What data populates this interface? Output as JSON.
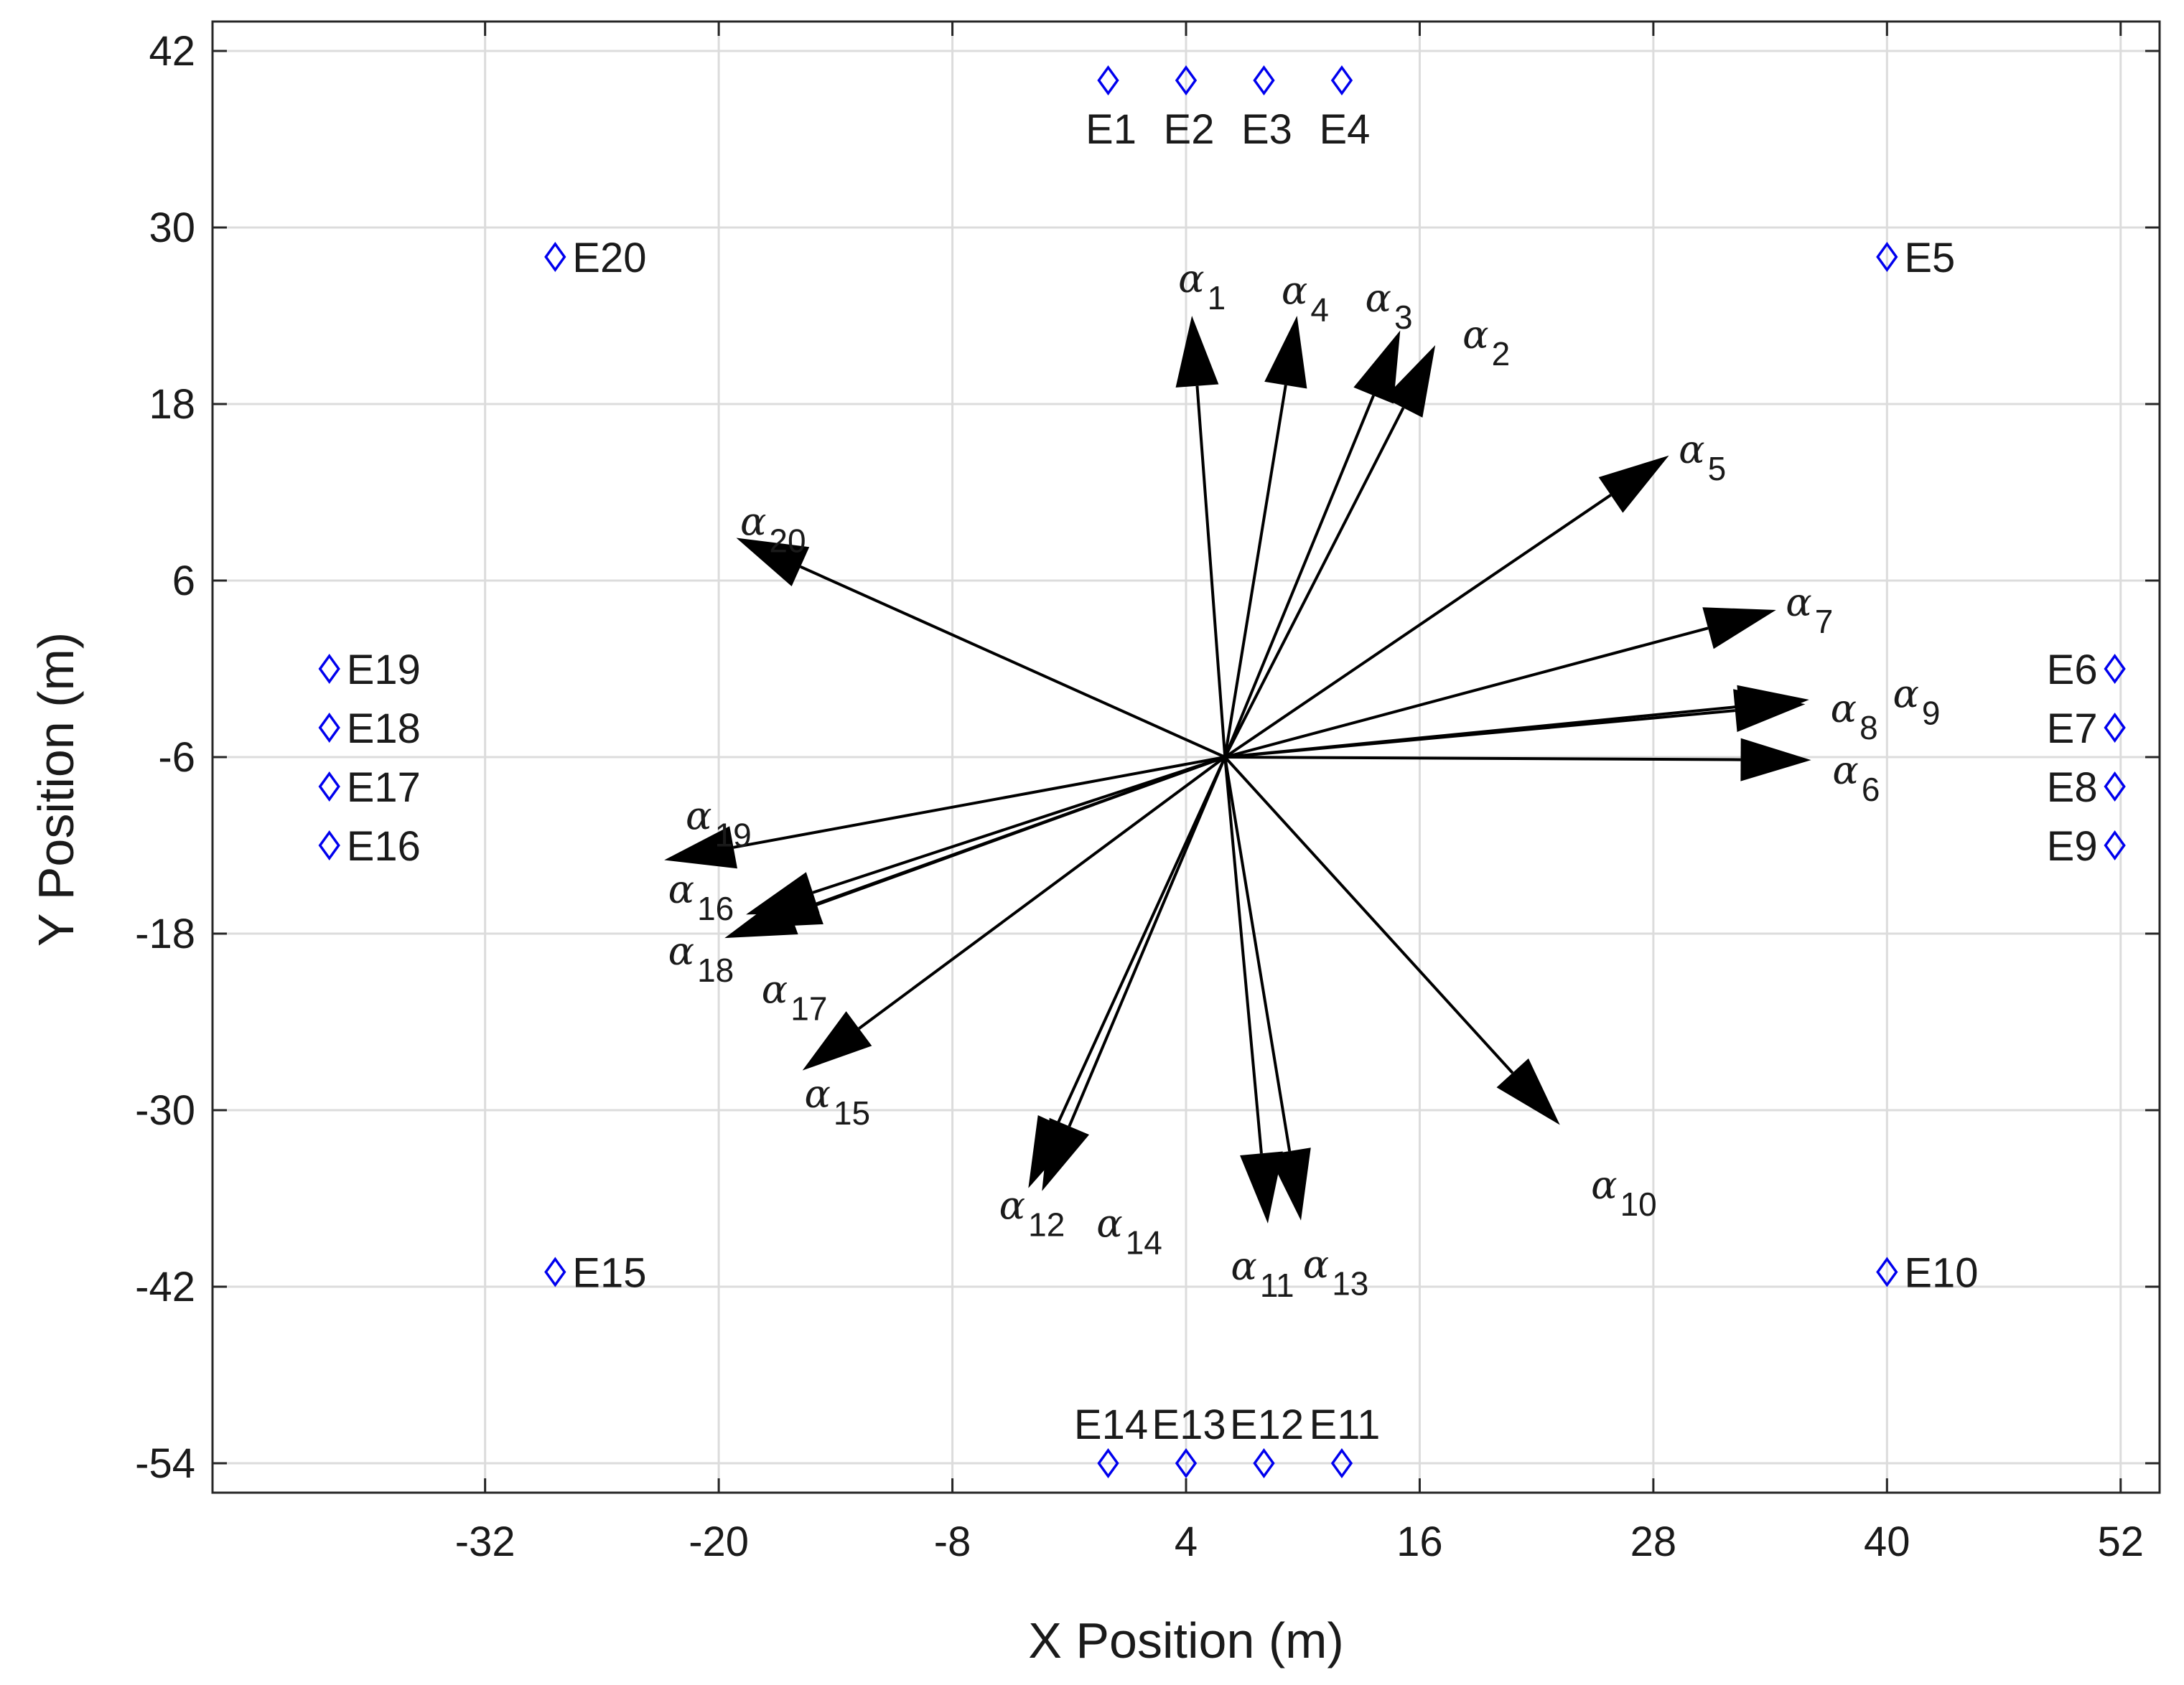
{
  "chart_data": {
    "type": "scatter",
    "title": "",
    "xlabel": "X Position (m)",
    "ylabel": "Y Position (m)",
    "xlim": [
      -46,
      54
    ],
    "ylim": [
      -56,
      44
    ],
    "xticks": [
      -32,
      -20,
      -8,
      4,
      16,
      28,
      40,
      52
    ],
    "yticks": [
      42,
      30,
      18,
      6,
      -6,
      -18,
      -30,
      -42,
      -54
    ],
    "grid": true,
    "colors": {
      "emitter": "#0000ee",
      "arrow": "#000000",
      "grid": "#dcdcdc",
      "axes": "#262626"
    },
    "emitter_marker": "diamond",
    "emitters": [
      {
        "name": "E1",
        "x": 0,
        "y": 40,
        "label_side": "below"
      },
      {
        "name": "E2",
        "x": 4,
        "y": 40,
        "label_side": "below"
      },
      {
        "name": "E3",
        "x": 8,
        "y": 40,
        "label_side": "below"
      },
      {
        "name": "E4",
        "x": 12,
        "y": 40,
        "label_side": "below"
      },
      {
        "name": "E5",
        "x": 40,
        "y": 28,
        "label_side": "right"
      },
      {
        "name": "E6",
        "x": 51.7,
        "y": 0,
        "label_side": "left"
      },
      {
        "name": "E7",
        "x": 51.7,
        "y": -4,
        "label_side": "left"
      },
      {
        "name": "E8",
        "x": 51.7,
        "y": -8,
        "label_side": "left"
      },
      {
        "name": "E9",
        "x": 51.7,
        "y": -12,
        "label_side": "left"
      },
      {
        "name": "E10",
        "x": 40,
        "y": -41,
        "label_side": "right"
      },
      {
        "name": "E11",
        "x": 12,
        "y": -54,
        "label_side": "above"
      },
      {
        "name": "E12",
        "x": 8,
        "y": -54,
        "label_side": "above"
      },
      {
        "name": "E13",
        "x": 4,
        "y": -54,
        "label_side": "above"
      },
      {
        "name": "E14",
        "x": 0,
        "y": -54,
        "label_side": "above"
      },
      {
        "name": "E15",
        "x": -28.4,
        "y": -41,
        "label_side": "right"
      },
      {
        "name": "E16",
        "x": -40,
        "y": -12,
        "label_side": "right"
      },
      {
        "name": "E17",
        "x": -40,
        "y": -8,
        "label_side": "right"
      },
      {
        "name": "E18",
        "x": -40,
        "y": -4,
        "label_side": "right"
      },
      {
        "name": "E19",
        "x": -40,
        "y": 0,
        "label_side": "right"
      },
      {
        "name": "E20",
        "x": -28.4,
        "y": 28,
        "label_side": "right"
      }
    ],
    "arrow_origin": {
      "x": 6,
      "y": -6
    },
    "arrows": [
      {
        "symbol": "α",
        "index": "1",
        "x": 4.3,
        "y": 24,
        "label_x": 3.6,
        "label_y": 25.6
      },
      {
        "symbol": "α",
        "index": "2",
        "x": 16.8,
        "y": 22,
        "label_x": 18.2,
        "label_y": 21.8
      },
      {
        "symbol": "α",
        "index": "3",
        "x": 15,
        "y": 23,
        "label_x": 13.2,
        "label_y": 24.3
      },
      {
        "symbol": "α",
        "index": "4",
        "x": 9.7,
        "y": 24,
        "label_x": 8.9,
        "label_y": 24.8
      },
      {
        "symbol": "α",
        "index": "5",
        "x": 28.8,
        "y": 14.5,
        "label_x": 29.3,
        "label_y": 14
      },
      {
        "symbol": "α",
        "index": "6",
        "x": 36.1,
        "y": -6.2,
        "label_x": 37.2,
        "label_y": -7.8
      },
      {
        "symbol": "α",
        "index": "7",
        "x": 34.3,
        "y": 4,
        "label_x": 34.8,
        "label_y": 3.6
      },
      {
        "symbol": "α",
        "index": "8",
        "x": 36,
        "y": -2.1,
        "label_x": 37.1,
        "label_y": -3.6
      },
      {
        "symbol": "α",
        "index": "9",
        "x": 35.8,
        "y": -2.4,
        "label_x": 40.3,
        "label_y": -2.6
      },
      {
        "symbol": "α",
        "index": "10",
        "x": 23.2,
        "y": -31,
        "label_x": 24.8,
        "label_y": -36
      },
      {
        "symbol": "α",
        "index": "11",
        "x": 8.2,
        "y": -37.7,
        "label_x": 6.3,
        "label_y": -41.5
      },
      {
        "symbol": "α",
        "index": "12",
        "x": -3.4,
        "y": -35.5,
        "label_x": -5.6,
        "label_y": -37.4
      },
      {
        "symbol": "α",
        "index": "13",
        "x": 9.9,
        "y": -37.5,
        "label_x": 10,
        "label_y": -41.4
      },
      {
        "symbol": "α",
        "index": "14",
        "x": -4.1,
        "y": -35.3,
        "label_x": -0.6,
        "label_y": -38.6
      },
      {
        "symbol": "α",
        "index": "15",
        "x": -15.7,
        "y": -27.3,
        "label_x": -15.6,
        "label_y": -29.8
      },
      {
        "symbol": "α",
        "index": "16",
        "x": -18.6,
        "y": -16.7,
        "label_x": -22.6,
        "label_y": -15.9
      },
      {
        "symbol": "α",
        "index": "17",
        "x": -18.4,
        "y": -17.6,
        "label_x": -17.8,
        "label_y": -22.7
      },
      {
        "symbol": "α",
        "index": "18",
        "x": -19.7,
        "y": -18.3,
        "label_x": -22.6,
        "label_y": -20.1
      },
      {
        "symbol": "α",
        "index": "19",
        "x": -22.8,
        "y": -13,
        "label_x": -21.7,
        "label_y": -10.9
      },
      {
        "symbol": "α",
        "index": "20",
        "x": -19.1,
        "y": 8.9,
        "label_x": -18.9,
        "label_y": 9.1
      }
    ]
  }
}
